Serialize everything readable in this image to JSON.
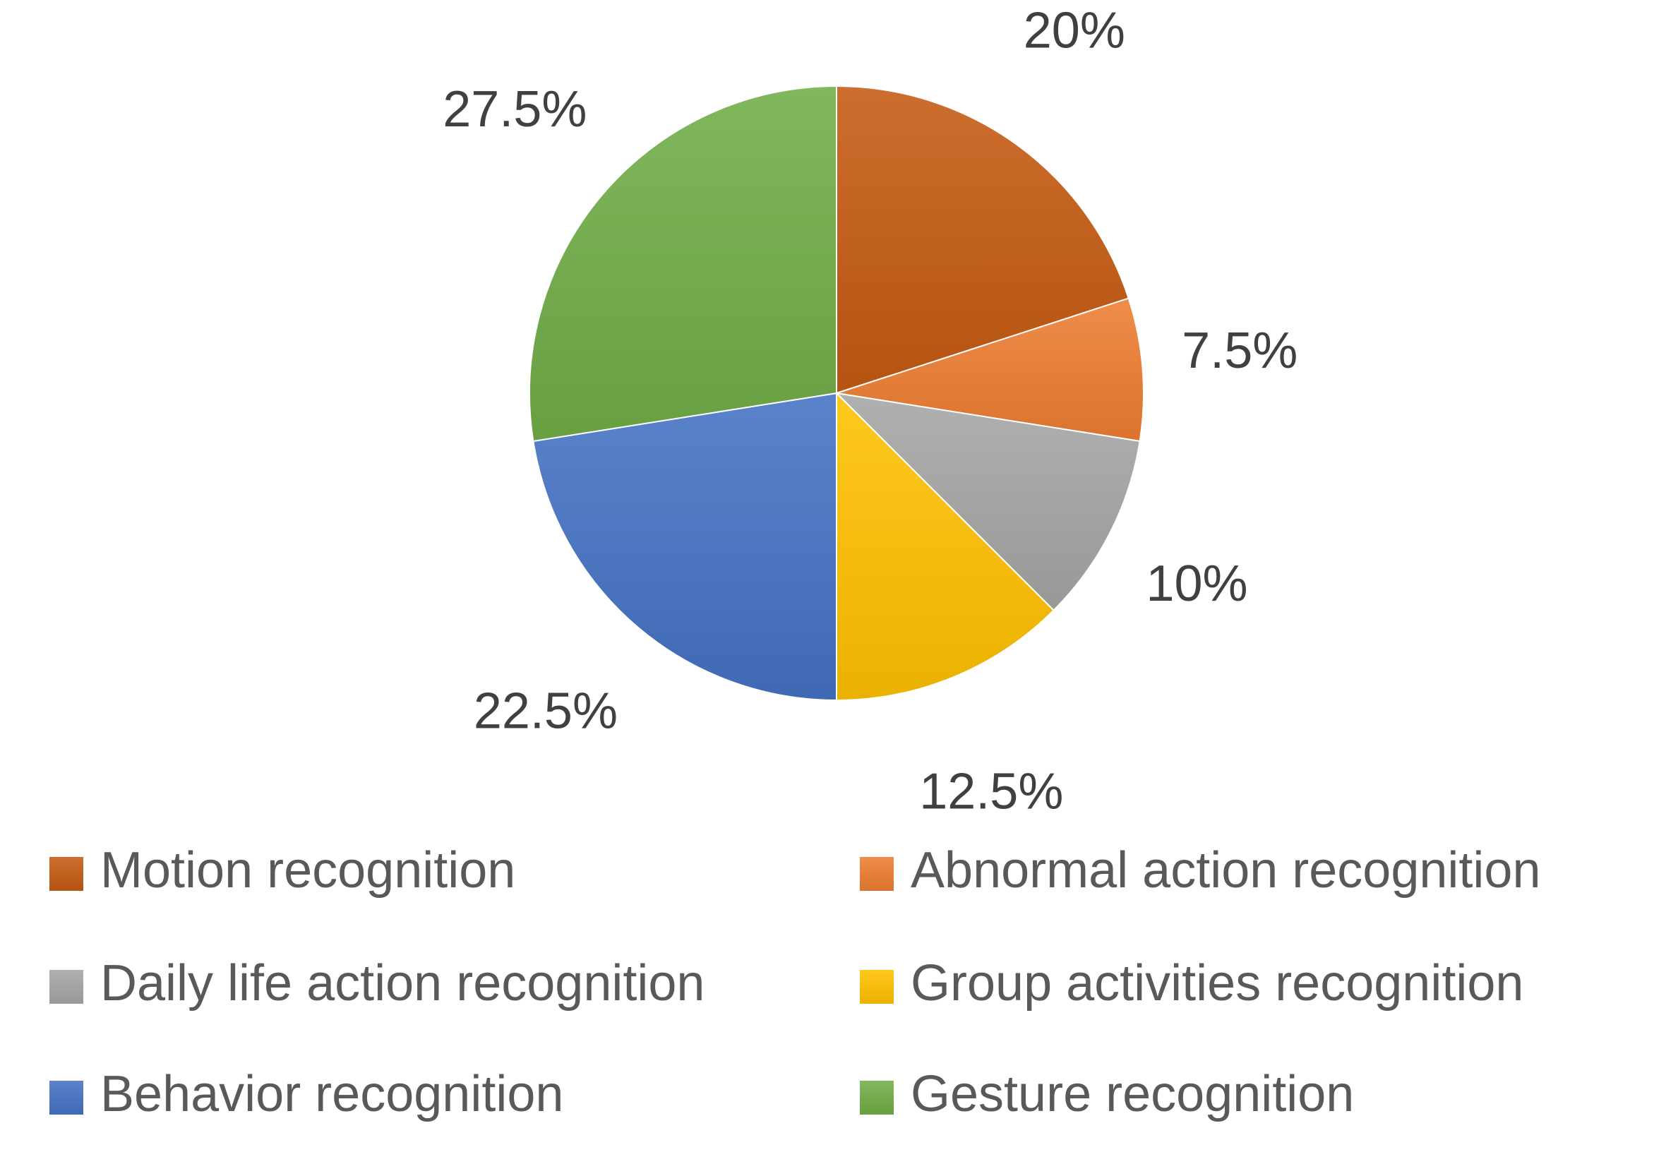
{
  "chart_data": {
    "type": "pie",
    "title": "",
    "legend_position": "bottom",
    "slices": [
      {
        "label": "Motion recognition",
        "value": 20,
        "display": "20%",
        "color": "#C55A11"
      },
      {
        "label": "Abnormal action recognition",
        "value": 7.5,
        "display": "7.5%",
        "color": "#ED7D31"
      },
      {
        "label": "Daily life action recognition",
        "value": 10,
        "display": "10%",
        "color": "#A5A5A5"
      },
      {
        "label": "Group activities recognition",
        "value": 12.5,
        "display": "12.5%",
        "color": "#FFC000"
      },
      {
        "label": "Behavior recognition",
        "value": 22.5,
        "display": "22.5%",
        "color": "#4472C4"
      },
      {
        "label": "Gesture recognition",
        "value": 27.5,
        "display": "27.5%",
        "color": "#70AD47"
      }
    ]
  }
}
